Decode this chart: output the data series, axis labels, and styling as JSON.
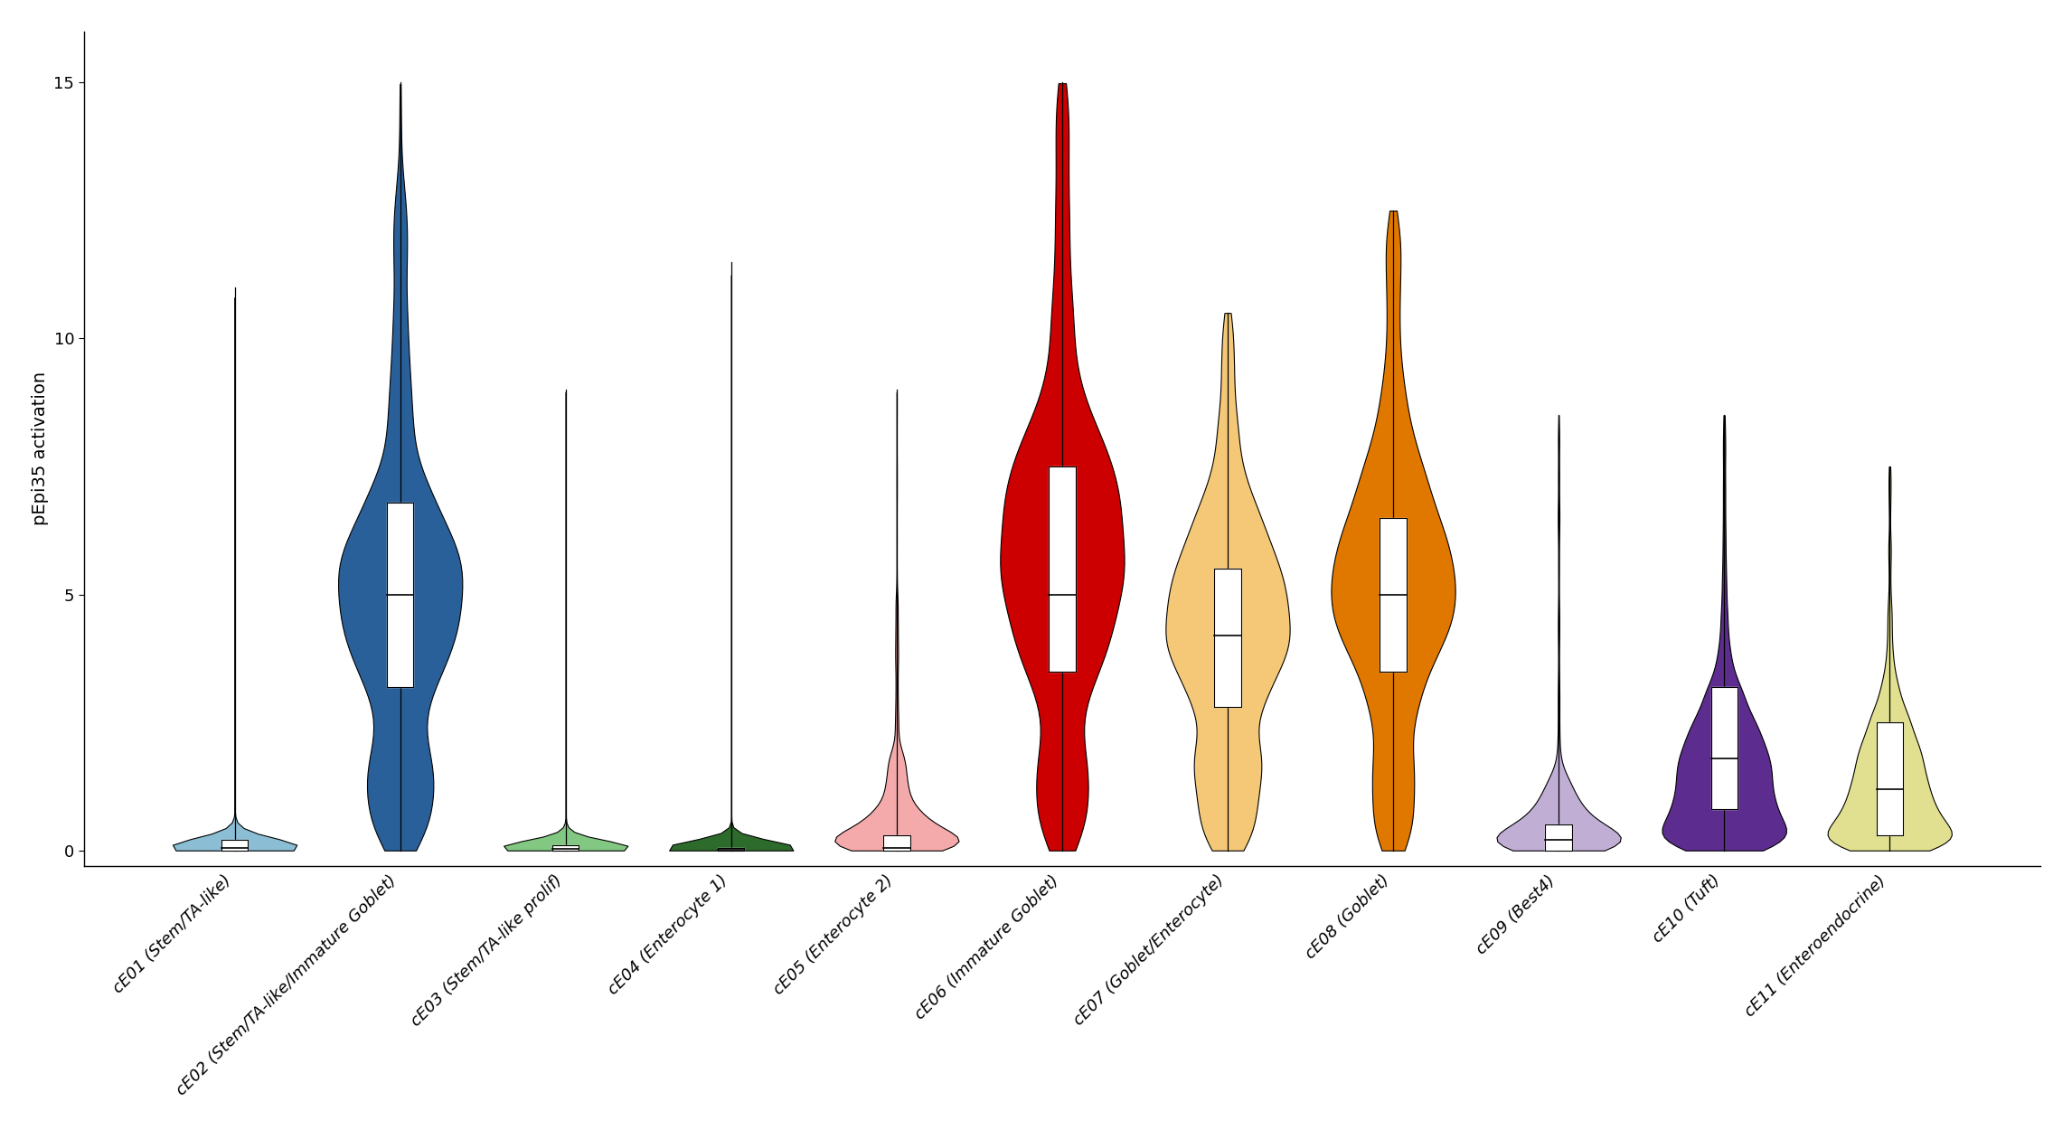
{
  "categories": [
    "cE01 (Stem/TA-like)",
    "cE02 (Stem/TA-like/Immature Goblet)",
    "cE03 (Stem/TA-like prolif)",
    "cE04 (Enterocyte 1)",
    "cE05 (Enterocyte 2)",
    "cE06 (Immature Goblet)",
    "cE07 (Goblet/Enterocyte)",
    "cE08 (Goblet)",
    "cE09 (Best4)",
    "cE10 (Tuft)",
    "cE11 (Enteroendocrine)"
  ],
  "colors": [
    "#8bbdd4",
    "#2a6099",
    "#82c882",
    "#2d6b2d",
    "#f4aaaa",
    "#cc0000",
    "#f5c878",
    "#e07800",
    "#c0aed4",
    "#5c2d8e",
    "#e0e090"
  ],
  "ylabel": "pEpi35 activation",
  "ylim": [
    -0.3,
    16
  ],
  "yticks": [
    0,
    5,
    10,
    15
  ],
  "violin_stats": [
    {
      "median": 0.05,
      "q1": 0.0,
      "q3": 0.2,
      "wlo": 0.0,
      "whi": 11.0
    },
    {
      "median": 5.0,
      "q1": 3.2,
      "q3": 6.8,
      "wlo": 0.0,
      "whi": 15.0
    },
    {
      "median": 0.03,
      "q1": 0.0,
      "q3": 0.1,
      "wlo": 0.0,
      "whi": 9.0
    },
    {
      "median": 0.02,
      "q1": 0.0,
      "q3": 0.05,
      "wlo": 0.0,
      "whi": 11.5
    },
    {
      "median": 0.05,
      "q1": 0.0,
      "q3": 0.3,
      "wlo": 0.0,
      "whi": 9.0
    },
    {
      "median": 5.0,
      "q1": 3.5,
      "q3": 7.5,
      "wlo": 0.0,
      "whi": 15.0
    },
    {
      "median": 4.2,
      "q1": 2.8,
      "q3": 5.5,
      "wlo": 0.0,
      "whi": 10.5
    },
    {
      "median": 5.0,
      "q1": 3.5,
      "q3": 6.5,
      "wlo": 0.0,
      "whi": 12.5
    },
    {
      "median": 0.2,
      "q1": 0.0,
      "q3": 0.5,
      "wlo": 0.0,
      "whi": 8.5
    },
    {
      "median": 1.8,
      "q1": 0.8,
      "q3": 3.2,
      "wlo": 0.0,
      "whi": 8.5
    },
    {
      "median": 1.2,
      "q1": 0.3,
      "q3": 2.5,
      "wlo": 0.0,
      "whi": 7.5
    }
  ]
}
